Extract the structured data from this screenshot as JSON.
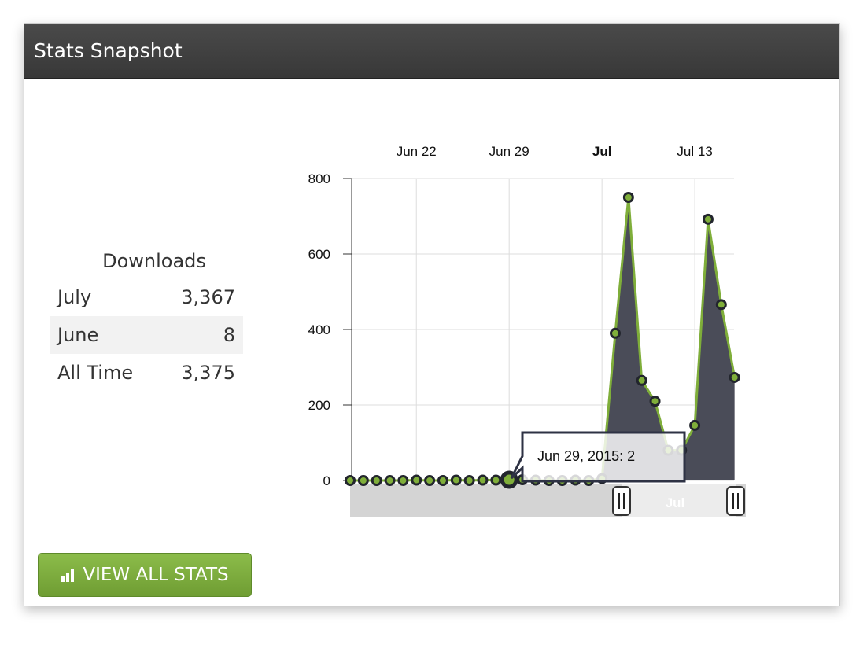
{
  "header": {
    "title": "Stats Snapshot"
  },
  "downloads": {
    "title": "Downloads",
    "rows": [
      {
        "label": "July",
        "value": "3,367"
      },
      {
        "label": "June",
        "value": "8"
      },
      {
        "label": "All Time",
        "value": "3,375"
      }
    ]
  },
  "button": {
    "label": "VIEW ALL STATS",
    "icon": "bar-chart-icon"
  },
  "tooltip": {
    "text": "Jun 29, 2015: 2"
  },
  "colors": {
    "line": "#7fae3a",
    "area": "#4a4c58",
    "header": "#404040",
    "button": "#7cab3f"
  },
  "chart_data": {
    "type": "area",
    "x_ticks": [
      "Jun 22",
      "Jun 29",
      "Jul",
      "Jul 13"
    ],
    "y_ticks": [
      "0",
      "200",
      "400",
      "600",
      "800"
    ],
    "ylim": [
      0,
      800
    ],
    "grid": true,
    "navigator_label": "Jul",
    "x": [
      "2015-06-17",
      "2015-06-18",
      "2015-06-19",
      "2015-06-20",
      "2015-06-21",
      "2015-06-22",
      "2015-06-23",
      "2015-06-24",
      "2015-06-25",
      "2015-06-26",
      "2015-06-27",
      "2015-06-28",
      "2015-06-29",
      "2015-06-30",
      "2015-07-01",
      "2015-07-02",
      "2015-07-03",
      "2015-07-04",
      "2015-07-05",
      "2015-07-06",
      "2015-07-07",
      "2015-07-08",
      "2015-07-09",
      "2015-07-10",
      "2015-07-11",
      "2015-07-12",
      "2015-07-13",
      "2015-07-14",
      "2015-07-15",
      "2015-07-16"
    ],
    "values": [
      0,
      0,
      0,
      0,
      0,
      1,
      0,
      0,
      1,
      0,
      1,
      1,
      2,
      2,
      1,
      0,
      0,
      1,
      0,
      5,
      390,
      750,
      265,
      210,
      80,
      80,
      146,
      692,
      466,
      273
    ]
  }
}
